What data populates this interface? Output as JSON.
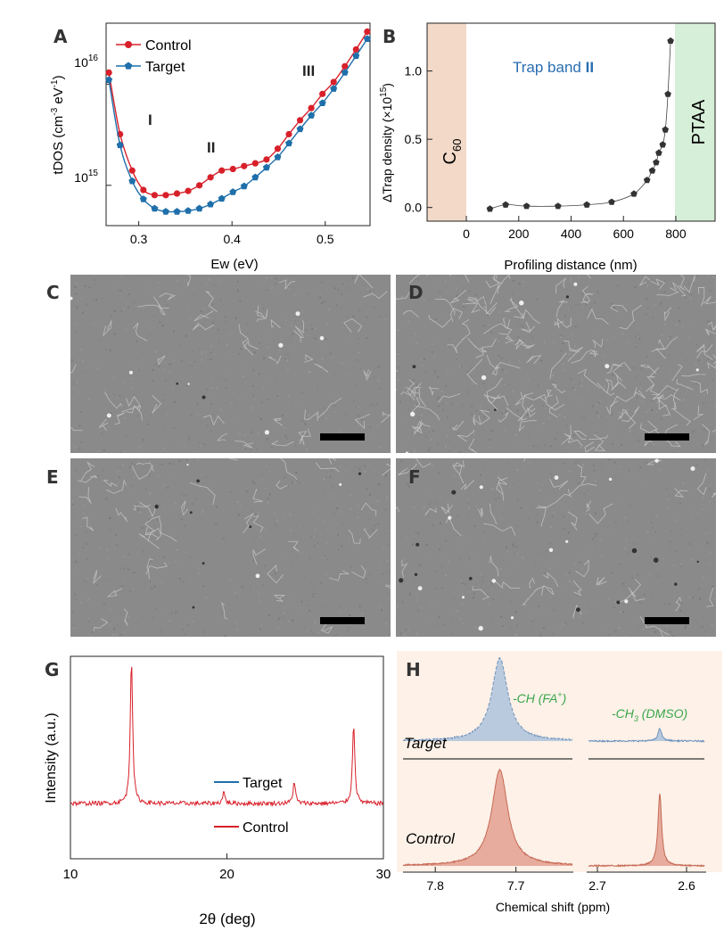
{
  "panels": {
    "A": {
      "letter": "A",
      "ylabel_main": "tDOS (cm",
      "ylabel_sup1": "-3",
      "ylabel_mid": " eV",
      "ylabel_sup2": "-1",
      "ylabel_end": ")",
      "ytick_16_base": "10",
      "ytick_16_exp": "16",
      "ytick_15_base": "10",
      "ytick_15_exp": "15",
      "xticks": [
        "0.3",
        "0.4",
        "0.5"
      ],
      "xlabel": "Ew (eV)",
      "band_labels": [
        "I",
        "II",
        "III"
      ]
    },
    "B": {
      "letter": "B",
      "ylabel_main": "ΔTrap density (×10",
      "ylabel_sup": "15",
      "ylabel_end": ")",
      "xlabel": "Profiling distance (nm)",
      "xticks": [
        "0",
        "200",
        "400",
        "600",
        "800"
      ],
      "yticks": [
        "0.0",
        "0.5",
        "1.0"
      ],
      "annotation_main": "Trap band ",
      "annotation_bold": "II",
      "left_layer": "C",
      "left_layer_sub": "60",
      "right_layer": "PTAA",
      "colors": {
        "left_layer": "#f2d9c8",
        "right_layer": "#d6efd8",
        "annotation": "#2a6db0"
      }
    },
    "C": {
      "letter": "C"
    },
    "D": {
      "letter": "D"
    },
    "E": {
      "letter": "E"
    },
    "F": {
      "letter": "F"
    },
    "G": {
      "letter": "G",
      "ylabel": "Intensity (a.u.)",
      "xlabel_theta": "2θ",
      "xlabel_end": " (deg)",
      "xticks": [
        "10",
        "20",
        "30"
      ],
      "legend_target": "Target",
      "legend_control": "Control"
    },
    "H": {
      "letter": "H",
      "xlabel": "Chemical shift (ppm)",
      "xticks_left": [
        "7.8",
        "7.7"
      ],
      "xticks_right": [
        "2.7",
        "2.6"
      ],
      "peak1_label": "-CH (FA",
      "peak1_sup": "+",
      "peak1_end": ")",
      "peak2_label": "-CH",
      "peak2_sub": "3",
      "peak2_end": " (DMSO)",
      "label_target": "Target",
      "label_control": "Control",
      "colors": {
        "background": "#fdf1e8",
        "annotation": "#3aa64a"
      }
    }
  },
  "colors": {
    "control": "#d8202a",
    "target": "#1f6faa",
    "scatter": "#333333"
  },
  "chart_data": [
    {
      "type": "line",
      "panel": "A",
      "xlabel": "Ew (eV)",
      "ylabel": "tDOS (cm-3 eV-1)",
      "yscale": "log",
      "xlim": [
        0.265,
        0.548
      ],
      "ylim": [
        400000000000000.0,
        4e+16
      ],
      "series": [
        {
          "name": "Control",
          "x": [
            0.268,
            0.28,
            0.293,
            0.305,
            0.317,
            0.329,
            0.341,
            0.353,
            0.365,
            0.377,
            0.389,
            0.401,
            0.413,
            0.425,
            0.437,
            0.449,
            0.461,
            0.473,
            0.485,
            0.497,
            0.509,
            0.521,
            0.533,
            0.545
          ],
          "y": [
            1.3e+16,
            3200000000000000.0,
            1400000000000000.0,
            900000000000000.0,
            800000000000000.0,
            800000000000000.0,
            830000000000000.0,
            880000000000000.0,
            1000000000000000.0,
            1200000000000000.0,
            1400000000000000.0,
            1450000000000000.0,
            1550000000000000.0,
            1650000000000000.0,
            1800000000000000.0,
            2300000000000000.0,
            3200000000000000.0,
            4400000000000000.0,
            5800000000000000.0,
            8000000000000000.0,
            1.05e+16,
            1.5e+16,
            2.2e+16,
            3.3e+16
          ]
        },
        {
          "name": "Target",
          "x": [
            0.268,
            0.28,
            0.293,
            0.305,
            0.317,
            0.329,
            0.341,
            0.353,
            0.365,
            0.377,
            0.389,
            0.401,
            0.413,
            0.425,
            0.437,
            0.449,
            0.461,
            0.473,
            0.485,
            0.497,
            0.509,
            0.521,
            0.533,
            0.545
          ],
          "y": [
            1.1e+16,
            2500000000000000.0,
            1100000000000000.0,
            730000000000000.0,
            590000000000000.0,
            550000000000000.0,
            550000000000000.0,
            560000000000000.0,
            590000000000000.0,
            650000000000000.0,
            740000000000000.0,
            860000000000000.0,
            980000000000000.0,
            1200000000000000.0,
            1500000000000000.0,
            1900000000000000.0,
            2600000000000000.0,
            3600000000000000.0,
            4900000000000000.0,
            6500000000000000.0,
            9000000000000000.0,
            1.3e+16,
            1.9e+16,
            2.8e+16
          ]
        }
      ]
    },
    {
      "type": "scatter",
      "panel": "B",
      "xlabel": "Profiling distance (nm)",
      "ylabel": "ΔTrap density (×10^15)",
      "xlim": [
        -150,
        950
      ],
      "ylim": [
        -0.1,
        1.35
      ],
      "series": [
        {
          "x": [
            90,
            150,
            230,
            350,
            460,
            555,
            640,
            690,
            710,
            725,
            735,
            750,
            760,
            770,
            780
          ],
          "y": [
            -0.01,
            0.02,
            0.01,
            0.01,
            0.02,
            0.04,
            0.1,
            0.2,
            0.27,
            0.33,
            0.4,
            0.46,
            0.57,
            0.83,
            1.22
          ]
        }
      ]
    },
    {
      "type": "line",
      "panel": "G",
      "xlabel": "2θ (deg)",
      "ylabel": "Intensity (a.u.)",
      "xlim": [
        10,
        30
      ],
      "series": [
        {
          "name": "Target",
          "peak_positions": [
            13.9,
            19.8,
            24.3,
            28.1
          ],
          "peak_heights": [
            1.0,
            0.1,
            0.13,
            0.55
          ]
        },
        {
          "name": "Control",
          "peak_positions": [
            13.9,
            19.8,
            24.3,
            28.1
          ],
          "peak_heights": [
            1.0,
            0.08,
            0.15,
            0.55
          ]
        }
      ]
    },
    {
      "type": "area",
      "panel": "H",
      "xlabel": "Chemical shift (ppm)",
      "x_segments": [
        [
          7.84,
          7.63
        ],
        [
          2.71,
          2.58
        ]
      ],
      "series": [
        {
          "name": "Target",
          "peaks_ppm": [
            7.72,
            2.63
          ],
          "relative_heights": [
            1.0,
            0.15
          ]
        },
        {
          "name": "Control",
          "peaks_ppm": [
            7.72,
            2.63
          ],
          "relative_heights": [
            1.0,
            0.75
          ]
        }
      ]
    }
  ]
}
